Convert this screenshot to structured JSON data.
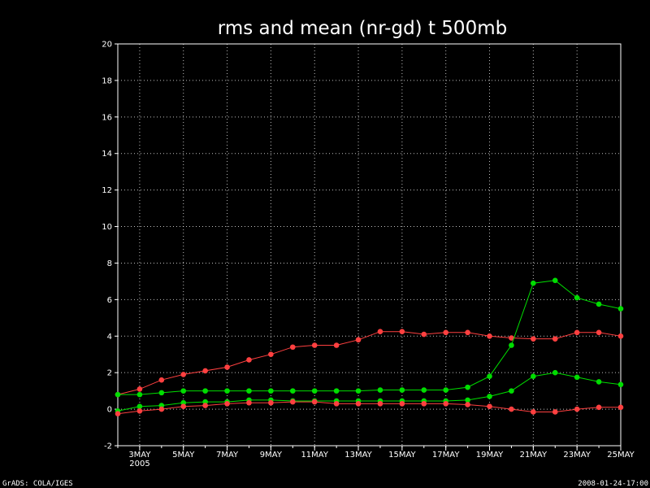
{
  "chart_data": {
    "type": "line",
    "title": "rms and mean (nr-gd) t 500mb",
    "xlabel": "",
    "ylabel": "",
    "x": [
      "2005-05-02",
      "2005-05-03",
      "2005-05-04",
      "2005-05-05",
      "2005-05-06",
      "2005-05-07",
      "2005-05-08",
      "2005-05-09",
      "2005-05-10",
      "2005-05-11",
      "2005-05-12",
      "2005-05-13",
      "2005-05-14",
      "2005-05-15",
      "2005-05-16",
      "2005-05-17",
      "2005-05-18",
      "2005-05-19",
      "2005-05-20",
      "2005-05-21",
      "2005-05-22",
      "2005-05-23",
      "2005-05-24",
      "2005-05-25"
    ],
    "xlim": [
      "2005-05-02",
      "2005-05-25"
    ],
    "ylim": [
      -2,
      20
    ],
    "grid": true,
    "x_tick_labels": [
      "3MAY",
      "5MAY",
      "7MAY",
      "9MAY",
      "11MAY",
      "13MAY",
      "15MAY",
      "17MAY",
      "19MAY",
      "21MAY",
      "23MAY",
      "25MAY"
    ],
    "x_tick_dates": [
      "2005-05-03",
      "2005-05-05",
      "2005-05-07",
      "2005-05-09",
      "2005-05-11",
      "2005-05-13",
      "2005-05-15",
      "2005-05-17",
      "2005-05-19",
      "2005-05-21",
      "2005-05-23",
      "2005-05-25"
    ],
    "x_year_label": "2005",
    "y_ticks": [
      -2,
      0,
      2,
      4,
      6,
      8,
      10,
      12,
      14,
      16,
      18,
      20
    ],
    "series": [
      {
        "color": "#ff4040",
        "values": [
          0.8,
          1.1,
          1.6,
          1.9,
          2.1,
          2.3,
          2.7,
          3.0,
          3.4,
          3.5,
          3.5,
          3.8,
          4.25,
          4.25,
          4.1,
          4.2,
          4.2,
          4.0,
          3.9,
          3.85,
          3.85,
          4.2,
          4.2,
          4.0
        ]
      },
      {
        "color": "#00dd00",
        "values": [
          0.8,
          0.8,
          0.9,
          1.0,
          1.0,
          1.0,
          1.0,
          1.0,
          1.0,
          1.0,
          1.0,
          1.0,
          1.05,
          1.05,
          1.05,
          1.05,
          1.2,
          1.8,
          3.5,
          6.9,
          7.05,
          6.1,
          5.75,
          5.5
        ]
      },
      {
        "color": "#00dd00",
        "values": [
          -0.1,
          0.15,
          0.2,
          0.35,
          0.4,
          0.4,
          0.5,
          0.5,
          0.45,
          0.45,
          0.45,
          0.45,
          0.45,
          0.45,
          0.45,
          0.45,
          0.5,
          0.7,
          1.0,
          1.8,
          2.0,
          1.75,
          1.5,
          1.35
        ]
      },
      {
        "color": "#ff4040",
        "values": [
          -0.25,
          -0.1,
          0.0,
          0.15,
          0.2,
          0.3,
          0.35,
          0.35,
          0.4,
          0.4,
          0.3,
          0.3,
          0.3,
          0.3,
          0.3,
          0.3,
          0.25,
          0.15,
          0.0,
          -0.15,
          -0.15,
          0.0,
          0.1,
          0.1
        ]
      }
    ]
  },
  "footer": {
    "left": "GrADS: COLA/IGES",
    "right": "2008-01-24-17:00"
  }
}
